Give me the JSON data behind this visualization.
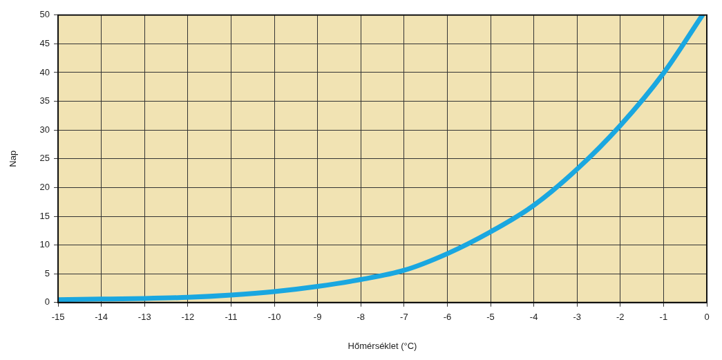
{
  "chart_data": {
    "type": "line",
    "xlabel": "Hőmérséklet (°C)",
    "ylabel": "Nap",
    "xlim": [
      -15,
      0
    ],
    "xticks": [
      -15,
      -14,
      -13,
      -12,
      -11,
      -10,
      -9,
      -8,
      -7,
      -6,
      -5,
      -4,
      -3,
      -2,
      -1,
      0
    ],
    "ylim": [
      0,
      50
    ],
    "yticks": [
      0,
      5,
      10,
      15,
      20,
      25,
      30,
      35,
      40,
      45,
      50
    ],
    "grid": true,
    "marker": "none",
    "line_style": "solid",
    "series": [
      {
        "color": "#1aa7e0",
        "x": [
          -15,
          -14,
          -13,
          -12,
          -11,
          -10,
          -9,
          -8,
          -7,
          -6,
          -5,
          -4,
          -3,
          -2,
          -1,
          -0.1
        ],
        "values": [
          0.5,
          0.6,
          0.7,
          0.9,
          1.3,
          1.9,
          2.8,
          4.0,
          5.6,
          8.5,
          12.3,
          16.9,
          23.2,
          30.8,
          39.9,
          50
        ]
      }
    ]
  }
}
